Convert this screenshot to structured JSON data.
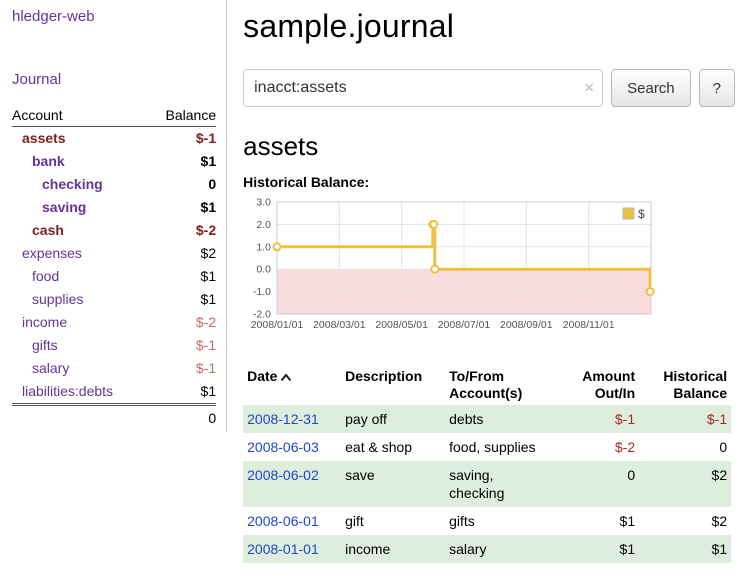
{
  "colors": {
    "link_purple": "#663399",
    "date_link_blue": "#2244cc",
    "negative_dark": "#802020",
    "negative_soft": "#c46a6a",
    "negative_table": "#a82828",
    "row_stripe_green": "#ddeedd",
    "chart_line_yellow": "#edc240",
    "chart_negative_region": "#f9dcdc"
  },
  "sidebar": {
    "title": "hledger-web",
    "nav": {
      "journal": "Journal"
    },
    "accounts": {
      "header_account": "Account",
      "header_balance": "Balance",
      "rows": [
        {
          "name": "assets",
          "balance": "$-1",
          "indent": 0,
          "bold": true,
          "name_style": "neg-dark",
          "balance_style": "neg-dark"
        },
        {
          "name": "bank",
          "balance": "$1",
          "indent": 1,
          "bold": true
        },
        {
          "name": "checking",
          "balance": "0",
          "indent": 2,
          "bold": true
        },
        {
          "name": "saving",
          "balance": "$1",
          "indent": 2,
          "bold": true
        },
        {
          "name": "cash",
          "balance": "$-2",
          "indent": 1,
          "bold": true,
          "name_style": "neg-dark",
          "balance_style": "neg-dark"
        },
        {
          "name": "expenses",
          "balance": "$2",
          "indent": 0,
          "bold": false
        },
        {
          "name": "food",
          "balance": "$1",
          "indent": 1,
          "bold": false
        },
        {
          "name": "supplies",
          "balance": "$1",
          "indent": 1,
          "bold": false
        },
        {
          "name": "income",
          "balance": "$-2",
          "indent": 0,
          "bold": false,
          "balance_style": "neg-soft"
        },
        {
          "name": "gifts",
          "balance": "$-1",
          "indent": 1,
          "bold": false,
          "balance_style": "neg-soft"
        },
        {
          "name": "salary",
          "balance": "$-1",
          "indent": 1,
          "bold": false,
          "balance_style": "neg-soft"
        },
        {
          "name": "liabilities:debts",
          "balance": "$1",
          "indent": 0,
          "bold": false
        }
      ],
      "total": "0"
    }
  },
  "main": {
    "title": "sample.journal",
    "search": {
      "value": "inacct:assets",
      "clear_label": "×",
      "button_label": "Search",
      "help_label": "?"
    },
    "account_heading": "assets",
    "chart_heading": "Historical Balance:"
  },
  "chart_data": {
    "type": "line",
    "step": true,
    "title": "Historical Balance:",
    "series": [
      {
        "name": "$",
        "color": "#edc240",
        "points": [
          {
            "date": "2008-01-01",
            "value": 1
          },
          {
            "date": "2008-06-01",
            "value": 2
          },
          {
            "date": "2008-06-02",
            "value": 2
          },
          {
            "date": "2008-06-03",
            "value": 0
          },
          {
            "date": "2008-12-31",
            "value": -1
          }
        ]
      }
    ],
    "ylim": [
      -2,
      3
    ],
    "yticks": [
      3,
      2,
      1,
      0,
      -1,
      -2
    ],
    "xtick_labels": [
      "2008/01/01",
      "2008/03/01",
      "2008/05/01",
      "2008/07/01",
      "2008/09/01",
      "2008/11/01"
    ],
    "legend": {
      "label": "$",
      "position": "top-right"
    },
    "grid": true,
    "negative_region": true
  },
  "register": {
    "headers": {
      "date": "Date",
      "description": "Description",
      "accounts": "To/From Account(s)",
      "amount": "Amount Out/In",
      "balance": "Historical Balance"
    },
    "rows": [
      {
        "date": "2008-12-31",
        "description": "pay off",
        "accounts": "debts",
        "amount": "$-1",
        "balance": "$-1"
      },
      {
        "date": "2008-06-03",
        "description": "eat & shop",
        "accounts": "food, supplies",
        "amount": "$-2",
        "balance": "0"
      },
      {
        "date": "2008-06-02",
        "description": "save",
        "accounts": "saving, checking",
        "amount": "0",
        "balance": "$2"
      },
      {
        "date": "2008-06-01",
        "description": "gift",
        "accounts": "gifts",
        "amount": "$1",
        "balance": "$2"
      },
      {
        "date": "2008-01-01",
        "description": "income",
        "accounts": "salary",
        "amount": "$1",
        "balance": "$1"
      }
    ]
  }
}
